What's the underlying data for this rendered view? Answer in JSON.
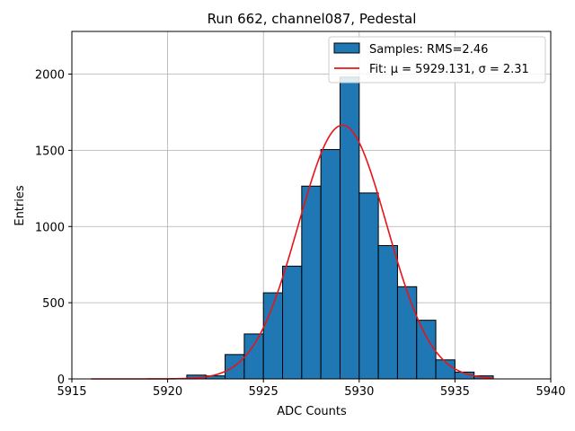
{
  "chart_data": {
    "type": "bar",
    "title": "Run 662, channel087, Pedestal",
    "xlabel": "ADC Counts",
    "ylabel": "Entries",
    "xlim": [
      5915,
      5940
    ],
    "ylim": [
      0,
      2280
    ],
    "xticks": [
      5915,
      5920,
      5925,
      5930,
      5935,
      5940
    ],
    "yticks": [
      0,
      500,
      1000,
      1500,
      2000
    ],
    "grid": true,
    "legend_position": "top-right",
    "histogram": {
      "name": "Samples: RMS=2.46",
      "color": "#1f77b4",
      "edgecolor": "#000000",
      "bin_edges": [
        5921,
        5922,
        5923,
        5924,
        5925,
        5926,
        5927,
        5928,
        5929,
        5930,
        5931,
        5932,
        5933,
        5934,
        5935,
        5936,
        5937
      ],
      "counts": [
        25,
        20,
        160,
        295,
        565,
        740,
        1265,
        1505,
        1980,
        1220,
        875,
        605,
        385,
        125,
        45,
        20
      ]
    },
    "fit": {
      "name": "Fit: μ = 5929.131, σ = 2.31",
      "color": "#e8141a",
      "mu": 5929.131,
      "sigma": 2.31,
      "amplitude": 1665,
      "x_range": [
        5916,
        5937
      ]
    }
  }
}
